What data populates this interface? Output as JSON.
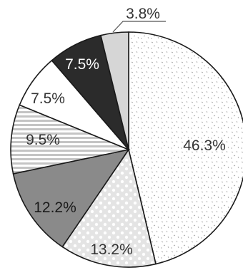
{
  "chart_data": {
    "type": "pie",
    "title": "",
    "start": "top, clockwise",
    "slices": [
      {
        "label": "46.3%",
        "value": 46.3,
        "fill": "dots-light",
        "label_color": "#333333"
      },
      {
        "label": "13.2%",
        "value": 13.2,
        "fill": "polka-dots",
        "label_color": "#333333"
      },
      {
        "label": "12.2%",
        "value": 12.2,
        "fill": "#8a8a8a",
        "label_color": "#1a1a1a"
      },
      {
        "label": "9.5%",
        "value": 9.5,
        "fill": "horizontal-stripes",
        "label_color": "#333333"
      },
      {
        "label": "7.5%",
        "value": 7.5,
        "fill": "#ffffff",
        "label_color": "#333333"
      },
      {
        "label": "7.5%",
        "value": 7.5,
        "fill": "#2b2b2b",
        "label_color": "#ffffff"
      },
      {
        "label": "3.8%",
        "value": 3.8,
        "fill": "#d6d6d6",
        "label_color": "#333333"
      }
    ],
    "legend": "none"
  }
}
